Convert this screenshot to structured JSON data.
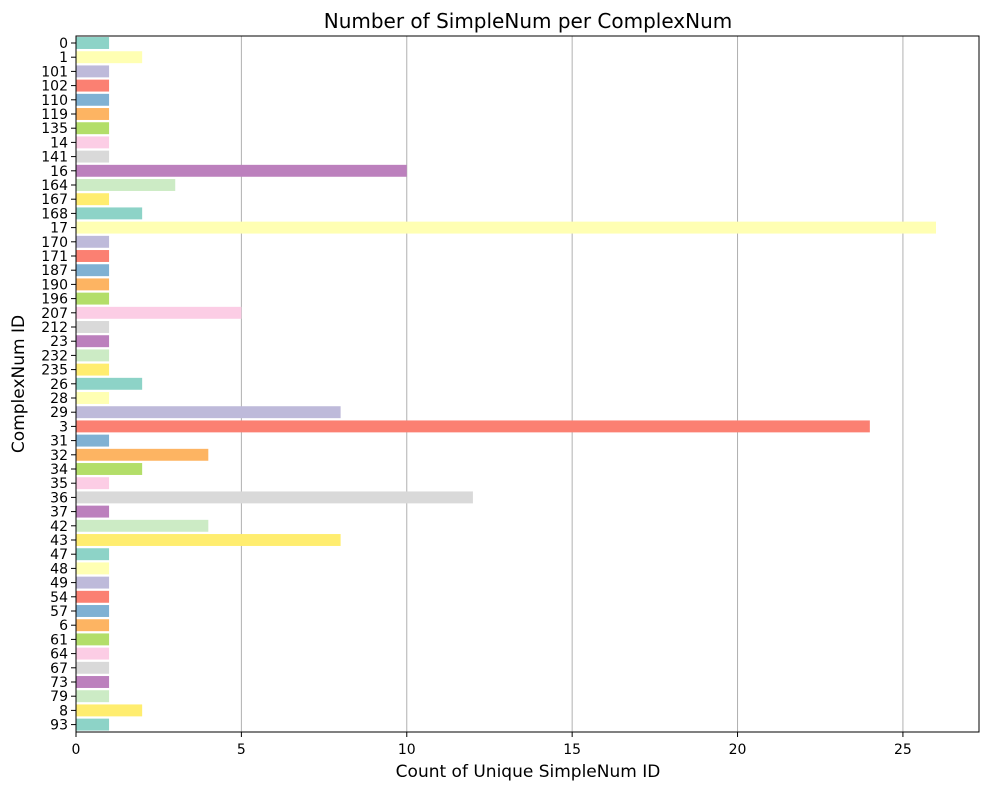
{
  "chart_data": {
    "type": "bar",
    "orientation": "horizontal",
    "title": "Number of SimpleNum per ComplexNum",
    "xlabel": "Count of Unique SimpleNum ID",
    "ylabel": "ComplexNum ID",
    "xlim": [
      0,
      27.3
    ],
    "xticks": [
      0,
      5,
      10,
      15,
      20,
      25
    ],
    "grid": "x-axis vertical lines",
    "legend": "none",
    "palette": [
      "#8dd3c7",
      "#ffffb3",
      "#bebada",
      "#fb8072",
      "#80b1d3",
      "#fdb462",
      "#b3de69",
      "#fccde5",
      "#d9d9d9",
      "#bc80bd",
      "#ccebc5",
      "#ffed6f"
    ],
    "categories": [
      "0",
      "1",
      "101",
      "102",
      "110",
      "119",
      "135",
      "14",
      "141",
      "16",
      "164",
      "167",
      "168",
      "17",
      "170",
      "171",
      "187",
      "190",
      "196",
      "207",
      "212",
      "23",
      "232",
      "235",
      "26",
      "28",
      "29",
      "3",
      "31",
      "32",
      "34",
      "35",
      "36",
      "37",
      "42",
      "43",
      "47",
      "48",
      "49",
      "54",
      "57",
      "6",
      "61",
      "64",
      "67",
      "73",
      "79",
      "8",
      "93"
    ],
    "values": [
      1,
      2,
      1,
      1,
      1,
      1,
      1,
      1,
      1,
      10,
      3,
      1,
      2,
      26,
      1,
      1,
      1,
      1,
      1,
      5,
      1,
      1,
      1,
      1,
      2,
      1,
      8,
      24,
      1,
      4,
      2,
      1,
      12,
      1,
      4,
      8,
      1,
      1,
      1,
      1,
      1,
      1,
      1,
      1,
      1,
      1,
      1,
      2,
      1
    ]
  }
}
